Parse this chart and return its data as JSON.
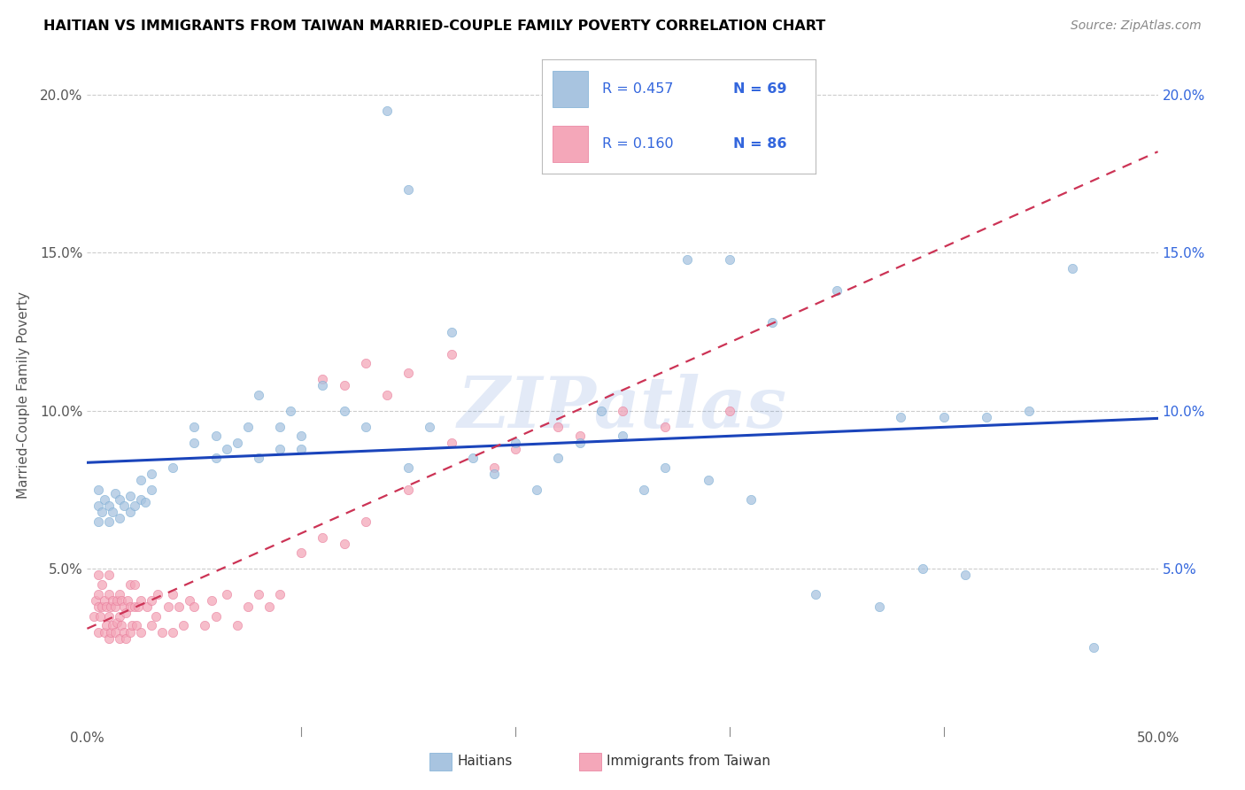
{
  "title": "HAITIAN VS IMMIGRANTS FROM TAIWAN MARRIED-COUPLE FAMILY POVERTY CORRELATION CHART",
  "source": "Source: ZipAtlas.com",
  "ylabel": "Married-Couple Family Poverty",
  "xlim": [
    0,
    0.5
  ],
  "ylim": [
    0,
    0.21
  ],
  "haitians_color": "#a8c4e0",
  "haitians_edge_color": "#7aadd4",
  "taiwan_color": "#f4a7b9",
  "taiwan_edge_color": "#e87a9a",
  "haitians_line_color": "#1a44bb",
  "taiwan_line_color": "#cc3355",
  "legend_r1_val": "0.457",
  "legend_n1_val": "69",
  "legend_r2_val": "0.160",
  "legend_n2_val": "86",
  "watermark": "ZIPatlas",
  "legend_text_color": "#3366dd",
  "haitians_x": [
    0.005,
    0.005,
    0.005,
    0.007,
    0.008,
    0.01,
    0.01,
    0.012,
    0.013,
    0.015,
    0.015,
    0.017,
    0.02,
    0.02,
    0.022,
    0.025,
    0.025,
    0.027,
    0.03,
    0.03,
    0.04,
    0.05,
    0.05,
    0.06,
    0.06,
    0.065,
    0.07,
    0.075,
    0.08,
    0.08,
    0.09,
    0.09,
    0.095,
    0.1,
    0.1,
    0.11,
    0.12,
    0.13,
    0.14,
    0.15,
    0.15,
    0.16,
    0.17,
    0.18,
    0.19,
    0.2,
    0.21,
    0.22,
    0.23,
    0.24,
    0.25,
    0.26,
    0.27,
    0.28,
    0.29,
    0.3,
    0.31,
    0.32,
    0.34,
    0.35,
    0.37,
    0.38,
    0.39,
    0.4,
    0.41,
    0.42,
    0.44,
    0.46,
    0.47
  ],
  "haitians_y": [
    0.065,
    0.07,
    0.075,
    0.068,
    0.072,
    0.065,
    0.07,
    0.068,
    0.074,
    0.066,
    0.072,
    0.07,
    0.068,
    0.073,
    0.07,
    0.072,
    0.078,
    0.071,
    0.075,
    0.08,
    0.082,
    0.09,
    0.095,
    0.085,
    0.092,
    0.088,
    0.09,
    0.095,
    0.085,
    0.105,
    0.088,
    0.095,
    0.1,
    0.088,
    0.092,
    0.108,
    0.1,
    0.095,
    0.195,
    0.082,
    0.17,
    0.095,
    0.125,
    0.085,
    0.08,
    0.09,
    0.075,
    0.085,
    0.09,
    0.1,
    0.092,
    0.075,
    0.082,
    0.148,
    0.078,
    0.148,
    0.072,
    0.128,
    0.042,
    0.138,
    0.038,
    0.098,
    0.05,
    0.098,
    0.048,
    0.098,
    0.1,
    0.145,
    0.025
  ],
  "taiwan_x": [
    0.003,
    0.004,
    0.005,
    0.005,
    0.005,
    0.005,
    0.006,
    0.007,
    0.007,
    0.008,
    0.008,
    0.009,
    0.009,
    0.01,
    0.01,
    0.01,
    0.01,
    0.011,
    0.011,
    0.012,
    0.012,
    0.013,
    0.013,
    0.014,
    0.014,
    0.015,
    0.015,
    0.015,
    0.016,
    0.016,
    0.017,
    0.017,
    0.018,
    0.018,
    0.019,
    0.02,
    0.02,
    0.02,
    0.021,
    0.022,
    0.022,
    0.023,
    0.024,
    0.025,
    0.025,
    0.028,
    0.03,
    0.03,
    0.032,
    0.033,
    0.035,
    0.038,
    0.04,
    0.04,
    0.043,
    0.045,
    0.048,
    0.05,
    0.055,
    0.058,
    0.06,
    0.065,
    0.07,
    0.075,
    0.08,
    0.085,
    0.09,
    0.1,
    0.11,
    0.12,
    0.13,
    0.15,
    0.17,
    0.19,
    0.2,
    0.22,
    0.23,
    0.25,
    0.27,
    0.3,
    0.11,
    0.12,
    0.13,
    0.14,
    0.15,
    0.17
  ],
  "taiwan_y": [
    0.035,
    0.04,
    0.03,
    0.038,
    0.042,
    0.048,
    0.035,
    0.038,
    0.045,
    0.03,
    0.04,
    0.032,
    0.038,
    0.028,
    0.035,
    0.042,
    0.048,
    0.03,
    0.038,
    0.032,
    0.04,
    0.03,
    0.038,
    0.033,
    0.04,
    0.028,
    0.035,
    0.042,
    0.032,
    0.04,
    0.03,
    0.038,
    0.028,
    0.036,
    0.04,
    0.03,
    0.038,
    0.045,
    0.032,
    0.038,
    0.045,
    0.032,
    0.038,
    0.03,
    0.04,
    0.038,
    0.032,
    0.04,
    0.035,
    0.042,
    0.03,
    0.038,
    0.03,
    0.042,
    0.038,
    0.032,
    0.04,
    0.038,
    0.032,
    0.04,
    0.035,
    0.042,
    0.032,
    0.038,
    0.042,
    0.038,
    0.042,
    0.055,
    0.06,
    0.058,
    0.065,
    0.075,
    0.09,
    0.082,
    0.088,
    0.095,
    0.092,
    0.1,
    0.095,
    0.1,
    0.11,
    0.108,
    0.115,
    0.105,
    0.112,
    0.118
  ]
}
